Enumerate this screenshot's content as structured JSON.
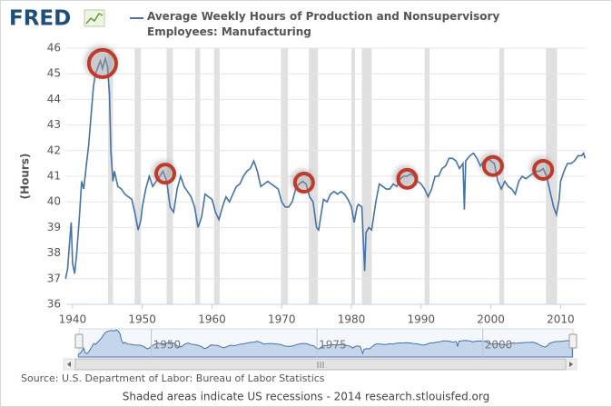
{
  "logo": "FRED",
  "chart_data": {
    "type": "line",
    "y_label": "(Hours)",
    "x": [
      1939.0,
      1939.3,
      1939.6,
      1939.8,
      1940.0,
      1940.3,
      1940.6,
      1941.0,
      1941.3,
      1941.6,
      1942.0,
      1942.3,
      1942.7,
      1943.0,
      1943.3,
      1943.7,
      1944.0,
      1944.3,
      1944.7,
      1945.0,
      1945.3,
      1945.5,
      1945.8,
      1946.0,
      1946.5,
      1947.0,
      1947.5,
      1948.0,
      1948.5,
      1949.0,
      1949.4,
      1949.8,
      1950.0,
      1950.5,
      1951.0,
      1951.5,
      1952.0,
      1952.5,
      1953.0,
      1953.5,
      1954.0,
      1954.5,
      1955.0,
      1955.5,
      1956.0,
      1956.5,
      1957.0,
      1957.5,
      1958.0,
      1958.5,
      1959.0,
      1959.5,
      1960.0,
      1960.5,
      1961.0,
      1961.5,
      1962.0,
      1962.5,
      1963.0,
      1963.5,
      1964.0,
      1964.5,
      1965.0,
      1965.5,
      1966.0,
      1966.5,
      1967.0,
      1967.5,
      1968.0,
      1968.5,
      1969.0,
      1969.5,
      1970.0,
      1970.5,
      1971.0,
      1971.5,
      1972.0,
      1972.5,
      1973.0,
      1973.5,
      1974.0,
      1974.5,
      1975.0,
      1975.3,
      1975.7,
      1976.0,
      1976.5,
      1977.0,
      1977.5,
      1978.0,
      1978.5,
      1979.0,
      1979.5,
      1980.0,
      1980.4,
      1980.8,
      1981.0,
      1981.5,
      1981.9,
      1982.1,
      1982.5,
      1982.9,
      1983.5,
      1984.0,
      1984.5,
      1985.0,
      1985.5,
      1986.0,
      1986.5,
      1987.0,
      1987.5,
      1988.0,
      1988.5,
      1989.0,
      1989.5,
      1990.0,
      1990.5,
      1991.0,
      1991.5,
      1992.0,
      1992.5,
      1993.0,
      1993.5,
      1994.0,
      1994.5,
      1995.0,
      1995.5,
      1996.0,
      1996.2,
      1996.4,
      1997.0,
      1997.5,
      1998.0,
      1998.5,
      1999.0,
      1999.5,
      2000.0,
      2000.5,
      2001.0,
      2001.5,
      2002.0,
      2002.5,
      2003.0,
      2003.5,
      2004.0,
      2004.5,
      2005.0,
      2005.5,
      2006.0,
      2006.5,
      2007.0,
      2007.5,
      2008.0,
      2008.5,
      2009.0,
      2009.4,
      2009.8,
      2010.0,
      2010.5,
      2011.0,
      2011.5,
      2012.0,
      2012.5,
      2013.0,
      2013.3,
      2013.5
    ],
    "series": [
      {
        "name": "Average Weekly Hours of Production and Nonsupervisory Employees: Manufacturing",
        "color": "#4572a7",
        "values": [
          37.0,
          37.4,
          38.5,
          39.2,
          37.6,
          37.2,
          38.0,
          39.5,
          40.8,
          40.5,
          41.5,
          42.2,
          43.5,
          44.5,
          45.0,
          45.3,
          45.5,
          45.2,
          45.6,
          45.3,
          44.2,
          42.0,
          40.8,
          41.2,
          40.6,
          40.5,
          40.3,
          40.2,
          40.1,
          39.5,
          38.9,
          39.3,
          39.8,
          40.5,
          41.0,
          40.6,
          40.8,
          41.0,
          41.2,
          40.8,
          39.8,
          39.6,
          40.5,
          41.0,
          40.6,
          40.4,
          40.2,
          39.8,
          39.0,
          39.4,
          40.3,
          40.2,
          40.1,
          39.6,
          39.3,
          39.8,
          40.2,
          40.0,
          40.3,
          40.6,
          40.7,
          41.0,
          41.2,
          41.3,
          41.6,
          41.2,
          40.6,
          40.7,
          40.8,
          40.7,
          40.6,
          40.5,
          40.0,
          39.8,
          39.8,
          40.0,
          40.5,
          40.7,
          40.8,
          40.7,
          40.2,
          40.0,
          39.0,
          38.9,
          39.6,
          40.1,
          40.0,
          40.3,
          40.4,
          40.3,
          40.4,
          40.3,
          40.1,
          39.8,
          39.2,
          39.8,
          39.9,
          39.8,
          37.3,
          38.8,
          39.0,
          38.9,
          40.0,
          40.7,
          40.6,
          40.5,
          40.5,
          40.7,
          40.6,
          40.9,
          41.0,
          41.0,
          41.1,
          41.0,
          40.8,
          40.7,
          40.5,
          40.2,
          40.5,
          41.0,
          41.0,
          41.3,
          41.4,
          41.7,
          41.7,
          41.6,
          41.3,
          41.5,
          39.7,
          41.6,
          41.8,
          41.9,
          41.7,
          41.4,
          41.6,
          41.7,
          41.6,
          41.5,
          40.8,
          40.5,
          40.8,
          40.6,
          40.5,
          40.3,
          40.8,
          41.0,
          40.9,
          41.0,
          41.1,
          41.2,
          41.2,
          41.3,
          41.0,
          40.4,
          39.8,
          39.5,
          40.1,
          40.8,
          41.2,
          41.5,
          41.5,
          41.6,
          41.8,
          41.8,
          41.9,
          41.7
        ]
      }
    ],
    "xlim": [
      1939.1,
      2013.6
    ],
    "ylim": [
      36,
      46
    ],
    "xticks": [
      1940,
      1950,
      1960,
      1970,
      1980,
      1990,
      2000,
      2010
    ],
    "yticks": [
      36,
      37,
      38,
      39,
      40,
      41,
      42,
      43,
      44,
      45,
      46
    ],
    "grid": true,
    "recessions": [
      [
        1945.1,
        1945.8
      ],
      [
        1948.9,
        1949.8
      ],
      [
        1953.5,
        1954.4
      ],
      [
        1957.6,
        1958.3
      ],
      [
        1960.3,
        1961.1
      ],
      [
        1969.9,
        1970.9
      ],
      [
        1973.9,
        1975.2
      ],
      [
        1980.0,
        1980.5
      ],
      [
        1981.5,
        1982.9
      ],
      [
        1990.5,
        1991.2
      ],
      [
        2001.2,
        2001.9
      ],
      [
        2007.9,
        2009.5
      ]
    ],
    "recession_color": "#e0e0e0",
    "highlights": {
      "color": "#c0392b",
      "x": [
        1944.3,
        1953.3,
        1973.2,
        1988.0,
        2000.3,
        2007.5
      ],
      "y": [
        45.4,
        41.1,
        40.75,
        40.9,
        41.4,
        41.25
      ]
    },
    "navigator": {
      "ticks": [
        1950,
        1975,
        2000
      ]
    },
    "source": "Source: U.S. Department of Labor: Bureau of Labor Statistics",
    "note": "Shaded areas indicate US recessions - 2014 research.stlouisfed.org"
  }
}
